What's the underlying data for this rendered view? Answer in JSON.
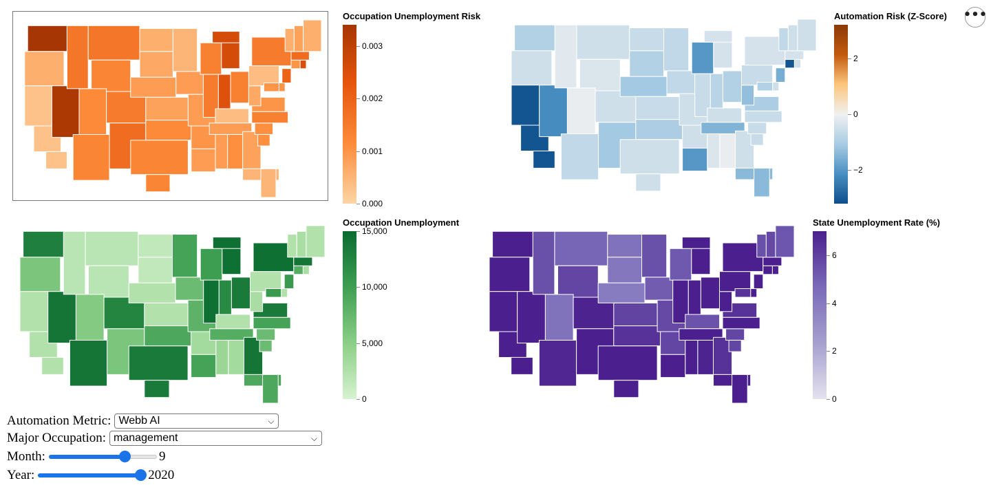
{
  "menu": {
    "icon": "more-horizontal-icon",
    "label": "•••"
  },
  "maps": [
    {
      "id": "occupation-unemployment-risk",
      "legend_title": "Occupation Unemployment Risk",
      "color_scale": [
        "#fdd5a6",
        "#fd8d3c",
        "#e6550d",
        "#a63603"
      ],
      "legend_ticks": [
        {
          "label": "0.003",
          "value": 0.003
        },
        {
          "label": "0.002",
          "value": 0.002
        },
        {
          "label": "0.001",
          "value": 0.001
        },
        {
          "label": "0.000",
          "value": 0.0
        }
      ],
      "domain": [
        0,
        0.0034
      ],
      "state_values": {
        "WA": 0.0034,
        "OR": 0.0006,
        "CA": 0.0003,
        "NV": 0.0033,
        "ID": 0.0016,
        "MT": 0.0016,
        "WY": 0.0013,
        "UT": 0.0012,
        "AZ": 0.0013,
        "CO": 0.0015,
        "NM": 0.0018,
        "ND": 0.0006,
        "SD": 0.0007,
        "NE": 0.0009,
        "KS": 0.0008,
        "OK": 0.0012,
        "TX": 0.0013,
        "MN": 0.0005,
        "IA": 0.0009,
        "MO": 0.0009,
        "AR": 0.001,
        "LA": 0.0009,
        "WI": 0.0014,
        "IL": 0.0015,
        "MI": 0.0026,
        "IN": 0.0024,
        "OH": 0.0014,
        "KY": 0.0004,
        "TN": 0.0009,
        "MS": 0.0009,
        "AL": 0.0011,
        "GA": 0.0008,
        "FL": 0.0005,
        "SC": 0.0011,
        "NC": 0.0014,
        "VA": 0.001,
        "WV": 0.0007,
        "PA": 0.0004,
        "NY": 0.0015,
        "NJ": 0.002,
        "DE": 0.001,
        "MD": 0.001,
        "CT": 0.001,
        "RI": 0.0025,
        "MA": 0.0018,
        "VT": 0.0006,
        "NH": 0.0008,
        "ME": 0.0006
      }
    },
    {
      "id": "automation-risk-z-score",
      "legend_title": "Automation Risk (Z-Score)",
      "color_scale": [
        "#0d4f8b",
        "#4a90c2",
        "#a7cbe3",
        "#f0f0f0",
        "#fbc47a",
        "#c25a0f",
        "#8c3a09"
      ],
      "legend_ticks": [
        {
          "label": "2",
          "value": 2
        },
        {
          "label": "0",
          "value": 0
        },
        {
          "label": "−2",
          "value": -2
        }
      ],
      "domain": [
        -3.2,
        3.2
      ],
      "state_values": {
        "WA": -0.9,
        "OR": -0.5,
        "CA": -3.1,
        "NV": -2.2,
        "ID": -0.2,
        "MT": -0.5,
        "WY": -0.3,
        "UT": -0.1,
        "AZ": -0.7,
        "CO": -0.5,
        "NM": -1.1,
        "ND": -0.6,
        "SD": -0.9,
        "NE": -1.1,
        "KS": -0.6,
        "OK": -1.0,
        "TX": -0.5,
        "MN": -0.7,
        "IA": -0.7,
        "MO": -0.5,
        "AR": -0.5,
        "LA": -2.0,
        "WI": -2.0,
        "IL": -0.6,
        "MI": -0.4,
        "IN": -0.8,
        "OH": -0.9,
        "KY": -0.5,
        "TN": -1.5,
        "MS": -0.3,
        "AL": -0.1,
        "GA": -0.5,
        "FL": -1.4,
        "SC": -0.6,
        "NC": -0.6,
        "VA": -1.0,
        "WV": -1.3,
        "PA": -0.6,
        "NY": -0.4,
        "NJ": -1.6,
        "DE": -0.5,
        "MD": -0.9,
        "CT": -3.1,
        "RI": -0.5,
        "MA": -0.4,
        "VT": -0.7,
        "NH": -0.5,
        "ME": -0.5
      }
    },
    {
      "id": "occupation-unemployment",
      "legend_title": "Occupation Unemployment",
      "color_scale": [
        "#d7f2d0",
        "#8ccf87",
        "#3d9e52",
        "#0a6b30"
      ],
      "legend_ticks": [
        {
          "label": "15,000",
          "value": 15000
        },
        {
          "label": "10,000",
          "value": 10000
        },
        {
          "label": "5,000",
          "value": 5000
        },
        {
          "label": "0",
          "value": 0
        }
      ],
      "domain": [
        0,
        15000
      ],
      "state_values": {
        "WA": 13000,
        "OR": 6000,
        "CA": 2500,
        "NV": 14000,
        "ID": 2000,
        "MT": 2000,
        "WY": 2000,
        "UT": 5500,
        "AZ": 14000,
        "CO": 12500,
        "NM": 6000,
        "ND": 1500,
        "SD": 1500,
        "NE": 2500,
        "KS": 2500,
        "OK": 9000,
        "TX": 13500,
        "MN": 9500,
        "IA": 7000,
        "MO": 8000,
        "AR": 3500,
        "LA": 9500,
        "WI": 10000,
        "IL": 14500,
        "MI": 14500,
        "IN": 12000,
        "OH": 13500,
        "KY": 2500,
        "TN": 8500,
        "MS": 4000,
        "AL": 3500,
        "GA": 14000,
        "FL": 9000,
        "SC": 7000,
        "NC": 9500,
        "VA": 13500,
        "WV": 3000,
        "PA": 2500,
        "NY": 14500,
        "NJ": 10500,
        "DE": 2500,
        "MD": 10500,
        "CT": 8500,
        "RI": 3000,
        "MA": 14000,
        "VT": 2500,
        "NH": 3000,
        "ME": 2500
      }
    },
    {
      "id": "state-unemployment-rate",
      "legend_title": "State Unemployment Rate (%)",
      "color_scale": [
        "#e4e2ef",
        "#a6a0cf",
        "#7a6ab8",
        "#4b208e"
      ],
      "legend_ticks": [
        {
          "label": "6",
          "value": 6
        },
        {
          "label": "4",
          "value": 4
        },
        {
          "label": "2",
          "value": 2
        },
        {
          "label": "0",
          "value": 0
        }
      ],
      "domain": [
        0,
        7
      ],
      "state_values": {
        "WA": 7.0,
        "OR": 7.2,
        "CA": 7.2,
        "NV": 7.2,
        "ID": 5.5,
        "MT": 4.8,
        "WY": 5.8,
        "UT": 4.3,
        "AZ": 6.8,
        "CO": 6.9,
        "NM": 7.2,
        "ND": 4.3,
        "SD": 4.1,
        "NE": 3.9,
        "KS": 5.9,
        "OK": 6.4,
        "TX": 7.2,
        "MN": 5.5,
        "IA": 5.1,
        "MO": 5.7,
        "AR": 5.8,
        "LA": 7.2,
        "WI": 5.2,
        "IL": 7.2,
        "MI": 7.0,
        "IN": 7.0,
        "OH": 7.1,
        "KY": 5.4,
        "TN": 7.1,
        "MS": 7.1,
        "AL": 6.9,
        "GA": 6.4,
        "FL": 7.0,
        "SC": 5.8,
        "NC": 7.1,
        "VA": 6.4,
        "WV": 7.2,
        "PA": 7.2,
        "NY": 7.2,
        "NJ": 7.2,
        "DE": 7.2,
        "MD": 6.4,
        "CT": 7.2,
        "RI": 7.2,
        "MA": 7.2,
        "VT": 5.5,
        "NH": 5.7,
        "ME": 5.3
      }
    }
  ],
  "controls": {
    "automation_metric": {
      "label": "Automation Metric:",
      "value": "Webb AI"
    },
    "major_occupation": {
      "label": "Major Occupation:",
      "value": "management"
    },
    "month": {
      "label": "Month:",
      "value": "9",
      "min": 1,
      "max": 12,
      "current": 9
    },
    "year": {
      "label": "Year:",
      "value": "2020",
      "min": 2010,
      "max": 2020,
      "current": 2020
    }
  }
}
